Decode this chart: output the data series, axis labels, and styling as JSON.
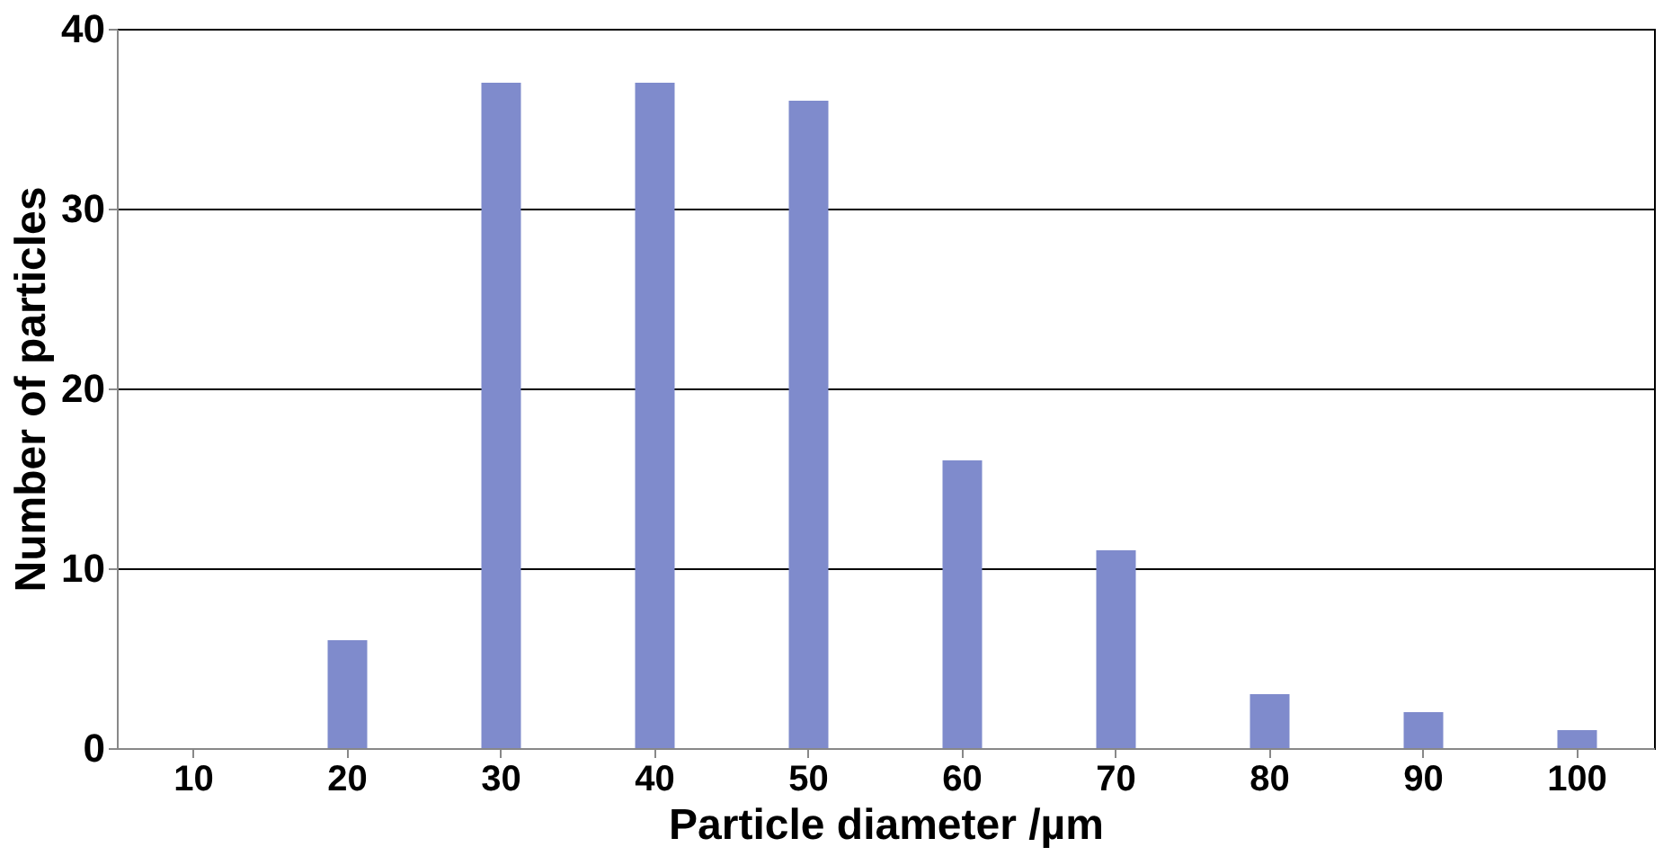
{
  "chart_data": {
    "type": "bar",
    "xlabel": "Particle diameter /µm",
    "ylabel": "Number of particles",
    "categories": [
      "10",
      "20",
      "30",
      "40",
      "50",
      "60",
      "70",
      "80",
      "90",
      "100"
    ],
    "values": [
      0,
      6,
      37,
      37,
      36,
      16,
      11,
      3,
      2,
      1
    ],
    "color": "#7f8bcc",
    "ylim": [
      0,
      40
    ],
    "yticks": [
      0,
      10,
      20,
      30,
      40
    ],
    "grid": "y"
  }
}
